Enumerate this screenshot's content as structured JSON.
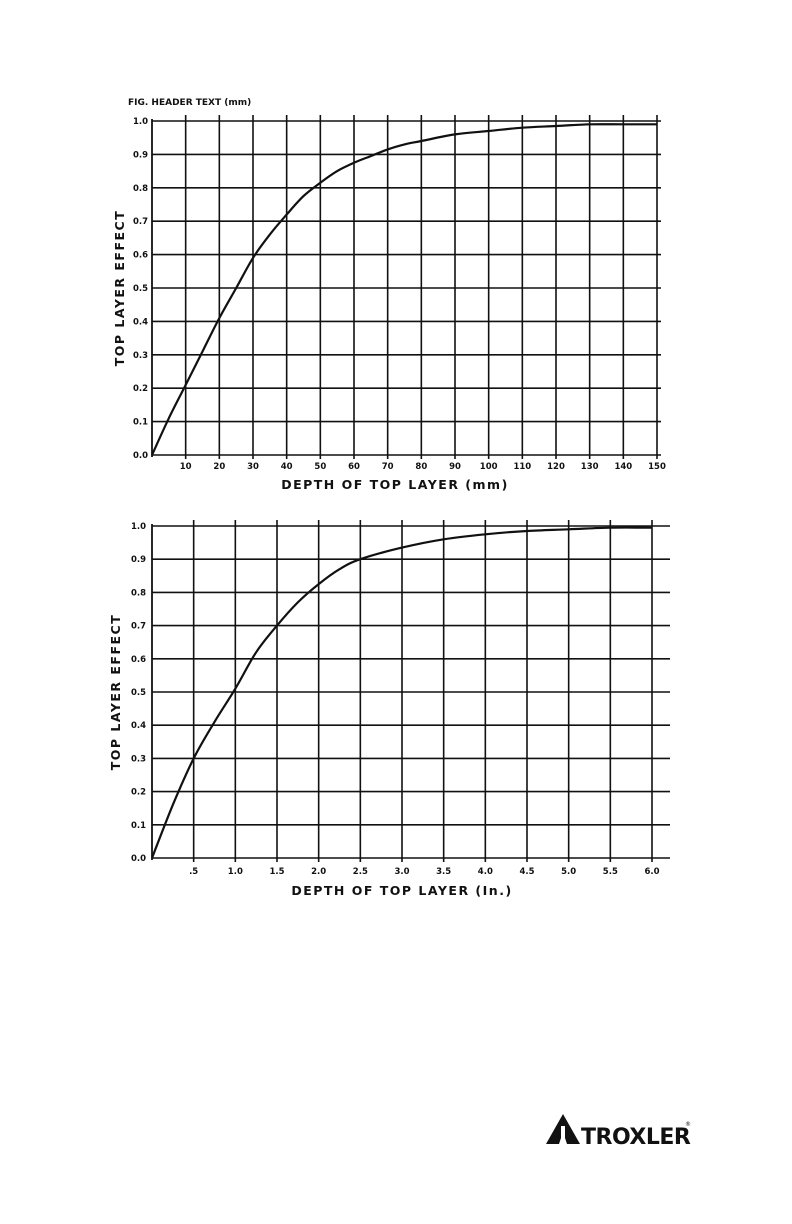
{
  "charts": [
    {
      "header_text": "FIG.   HEADER TEXT   (mm)",
      "chart_data": {
        "type": "line",
        "xlabel": "DEPTH OF TOP LAYER (mm)",
        "ylabel": "TOP LAYER EFFECT",
        "xlim": [
          0,
          150
        ],
        "ylim": [
          0.0,
          1.0
        ],
        "x_ticks": [
          10,
          20,
          30,
          40,
          50,
          60,
          70,
          80,
          90,
          100,
          110,
          120,
          130,
          140,
          150
        ],
        "x_tick_labels": [
          "10",
          "20",
          "30",
          "40",
          "50",
          "60",
          "70",
          "80",
          "90",
          "100",
          "110",
          "120",
          "130",
          "140",
          "150"
        ],
        "y_ticks": [
          0.0,
          0.1,
          0.2,
          0.3,
          0.4,
          0.5,
          0.6,
          0.7,
          0.8,
          0.9,
          1.0
        ],
        "y_tick_labels": [
          "0.0",
          "0.1",
          "0.2",
          "0.3",
          "0.4",
          "0.5",
          "0.6",
          "0.7",
          "0.8",
          "0.9",
          "1.0"
        ],
        "grid": true,
        "series": [
          {
            "x": [
              0,
              5,
              10,
              15,
              20,
              25,
              30,
              35,
              40,
              45,
              50,
              55,
              60,
              65,
              70,
              75,
              80,
              90,
              100,
              110,
              120,
              130,
              140,
              150
            ],
            "y": [
              0.0,
              0.11,
              0.21,
              0.31,
              0.41,
              0.5,
              0.59,
              0.66,
              0.72,
              0.775,
              0.815,
              0.85,
              0.875,
              0.895,
              0.915,
              0.93,
              0.94,
              0.96,
              0.97,
              0.98,
              0.985,
              0.99,
              0.99,
              0.99
            ]
          }
        ]
      }
    },
    {
      "chart_data": {
        "type": "line",
        "xlabel": "DEPTH OF TOP LAYER (In.)",
        "ylabel": "TOP LAYER EFFECT",
        "xlim": [
          0,
          6.0
        ],
        "ylim": [
          0.0,
          1.0
        ],
        "x_ticks": [
          0.5,
          1.0,
          1.5,
          2.0,
          2.5,
          3.0,
          3.5,
          4.0,
          4.5,
          5.0,
          5.5,
          6.0
        ],
        "x_tick_labels": [
          ".5",
          "1.0",
          "1.5",
          "2.0",
          "2.5",
          "3.0",
          "3.5",
          "4.0",
          "4.5",
          "5.0",
          "5.5",
          "6.0"
        ],
        "y_ticks": [
          0.0,
          0.1,
          0.2,
          0.3,
          0.4,
          0.5,
          0.6,
          0.7,
          0.8,
          0.9,
          1.0
        ],
        "y_tick_labels": [
          "0.0",
          "0.1",
          "0.2",
          "0.3",
          "0.4",
          "0.5",
          "0.6",
          "0.7",
          "0.8",
          "0.9",
          "1.0"
        ],
        "grid": true,
        "series": [
          {
            "x": [
              0,
              0.25,
              0.5,
              0.75,
              1.0,
              1.25,
              1.5,
              1.75,
              2.0,
              2.25,
              2.5,
              3.0,
              3.5,
              4.0,
              4.5,
              5.0,
              5.5,
              6.0
            ],
            "y": [
              0.0,
              0.16,
              0.3,
              0.41,
              0.51,
              0.62,
              0.7,
              0.77,
              0.825,
              0.87,
              0.9,
              0.935,
              0.96,
              0.975,
              0.985,
              0.99,
              0.995,
              0.995
            ]
          }
        ]
      }
    }
  ],
  "logo": {
    "text": "TROXLER",
    "trademark": "®"
  }
}
